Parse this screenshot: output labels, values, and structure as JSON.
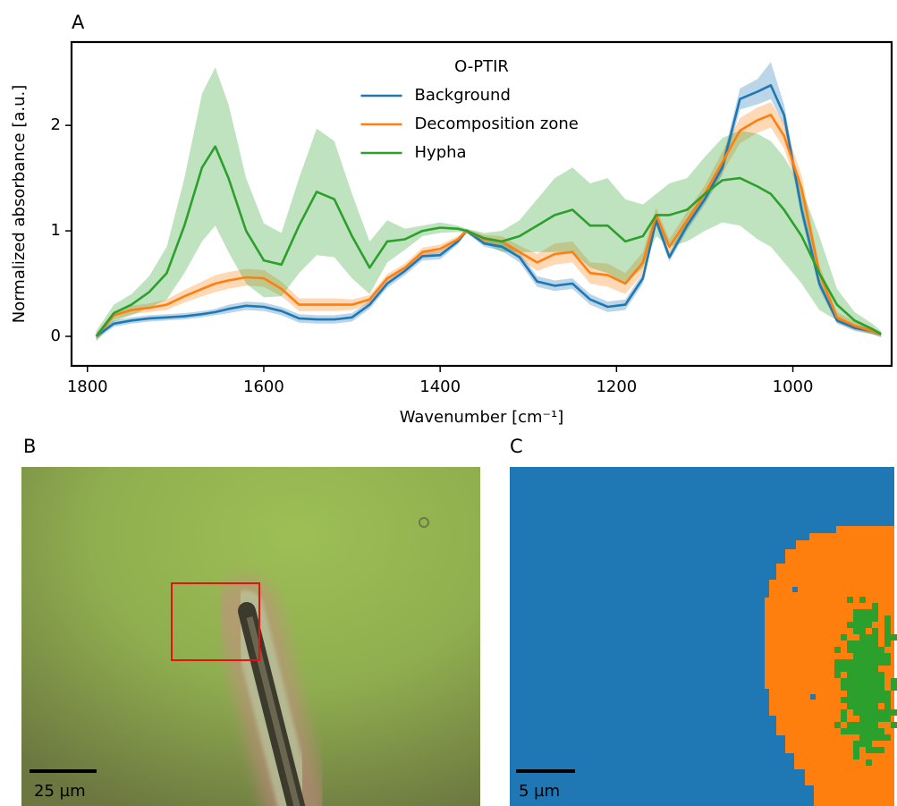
{
  "chart_data": {
    "type": "line",
    "panel_label": "A",
    "xlabel": "Wavenumber [cm⁻¹]",
    "ylabel": "Normalized absorbance [a.u.]",
    "legend_title": "O-PTIR",
    "legend_position": "upper center",
    "xlim": [
      1818,
      888
    ],
    "ylim": [
      -0.28,
      2.79
    ],
    "xticks": [
      1800,
      1600,
      1400,
      1200,
      1000
    ],
    "yticks": [
      0,
      1,
      2
    ],
    "x": [
      1790,
      1770,
      1750,
      1730,
      1710,
      1690,
      1670,
      1655,
      1640,
      1620,
      1600,
      1580,
      1560,
      1540,
      1520,
      1500,
      1480,
      1460,
      1440,
      1420,
      1400,
      1380,
      1370,
      1350,
      1330,
      1310,
      1290,
      1270,
      1250,
      1230,
      1210,
      1190,
      1170,
      1155,
      1140,
      1120,
      1100,
      1080,
      1060,
      1040,
      1025,
      1010,
      990,
      970,
      950,
      930,
      910,
      900
    ],
    "series": [
      {
        "name": "Background",
        "color": "#1f77b4",
        "values": [
          0,
          0.12,
          0.15,
          0.17,
          0.18,
          0.19,
          0.21,
          0.23,
          0.26,
          0.29,
          0.28,
          0.24,
          0.17,
          0.16,
          0.16,
          0.18,
          0.3,
          0.5,
          0.62,
          0.76,
          0.77,
          0.9,
          1,
          0.88,
          0.85,
          0.75,
          0.52,
          0.48,
          0.5,
          0.35,
          0.28,
          0.3,
          0.55,
          1.1,
          0.75,
          1.05,
          1.3,
          1.6,
          2.25,
          2.32,
          2.38,
          2.1,
          1.2,
          0.5,
          0.15,
          0.08,
          0.05,
          0.02
        ],
        "lower": [
          -0.03,
          0.09,
          0.12,
          0.14,
          0.15,
          0.16,
          0.18,
          0.2,
          0.22,
          0.25,
          0.24,
          0.2,
          0.13,
          0.12,
          0.12,
          0.14,
          0.26,
          0.46,
          0.58,
          0.72,
          0.73,
          0.87,
          0.98,
          0.85,
          0.81,
          0.7,
          0.47,
          0.43,
          0.45,
          0.3,
          0.23,
          0.25,
          0.5,
          1.05,
          0.71,
          1,
          1.25,
          1.53,
          2.15,
          2.2,
          2.25,
          2,
          1.12,
          0.45,
          0.12,
          0.05,
          0.02,
          0
        ],
        "upper": [
          0.03,
          0.15,
          0.18,
          0.2,
          0.21,
          0.22,
          0.24,
          0.26,
          0.3,
          0.33,
          0.32,
          0.28,
          0.21,
          0.2,
          0.2,
          0.22,
          0.34,
          0.54,
          0.66,
          0.8,
          0.81,
          0.93,
          1.02,
          0.91,
          0.89,
          0.8,
          0.57,
          0.53,
          0.55,
          0.4,
          0.33,
          0.35,
          0.6,
          1.15,
          0.79,
          1.1,
          1.35,
          1.67,
          2.35,
          2.44,
          2.6,
          2.2,
          1.28,
          0.55,
          0.18,
          0.11,
          0.08,
          0.04
        ]
      },
      {
        "name": "Decomposition zone",
        "color": "#ff7f0e",
        "values": [
          0,
          0.2,
          0.25,
          0.27,
          0.3,
          0.38,
          0.45,
          0.5,
          0.53,
          0.56,
          0.55,
          0.45,
          0.3,
          0.3,
          0.3,
          0.3,
          0.35,
          0.55,
          0.65,
          0.8,
          0.83,
          0.92,
          1,
          0.92,
          0.9,
          0.8,
          0.7,
          0.78,
          0.8,
          0.6,
          0.58,
          0.5,
          0.7,
          1.15,
          0.85,
          1.1,
          1.35,
          1.65,
          1.95,
          2.05,
          2.1,
          1.9,
          1.4,
          0.6,
          0.18,
          0.1,
          0.05,
          0.02
        ],
        "lower": [
          -0.03,
          0.16,
          0.21,
          0.23,
          0.25,
          0.32,
          0.38,
          0.42,
          0.45,
          0.48,
          0.47,
          0.38,
          0.24,
          0.24,
          0.24,
          0.25,
          0.31,
          0.51,
          0.61,
          0.76,
          0.79,
          0.89,
          0.98,
          0.88,
          0.85,
          0.74,
          0.62,
          0.68,
          0.7,
          0.5,
          0.47,
          0.4,
          0.6,
          1.08,
          0.78,
          1.02,
          1.27,
          1.55,
          1.83,
          1.93,
          1.98,
          1.78,
          1.28,
          0.52,
          0.13,
          0.06,
          0.02,
          0
        ],
        "upper": [
          0.03,
          0.24,
          0.29,
          0.31,
          0.35,
          0.44,
          0.52,
          0.58,
          0.61,
          0.64,
          0.63,
          0.52,
          0.36,
          0.36,
          0.36,
          0.35,
          0.39,
          0.59,
          0.69,
          0.84,
          0.87,
          0.95,
          1.02,
          0.96,
          0.95,
          0.86,
          0.78,
          0.88,
          0.9,
          0.7,
          0.69,
          0.6,
          0.8,
          1.22,
          0.92,
          1.18,
          1.43,
          1.75,
          2.07,
          2.17,
          2.22,
          2.02,
          1.52,
          0.68,
          0.23,
          0.14,
          0.08,
          0.04
        ]
      },
      {
        "name": "Hypha",
        "color": "#2ca02c",
        "values": [
          0,
          0.22,
          0.3,
          0.42,
          0.6,
          1.05,
          1.6,
          1.8,
          1.5,
          1,
          0.72,
          0.68,
          1.05,
          1.37,
          1.3,
          0.95,
          0.65,
          0.9,
          0.92,
          1,
          1.03,
          1.02,
          1,
          0.93,
          0.9,
          0.95,
          1.05,
          1.15,
          1.2,
          1.05,
          1.05,
          0.9,
          0.95,
          1.15,
          1.15,
          1.2,
          1.35,
          1.48,
          1.5,
          1.42,
          1.35,
          1.2,
          0.95,
          0.6,
          0.3,
          0.15,
          0.07,
          0.02
        ],
        "lower": [
          -0.05,
          0.14,
          0.2,
          0.27,
          0.35,
          0.6,
          0.9,
          1.05,
          0.8,
          0.5,
          0.37,
          0.38,
          0.6,
          0.77,
          0.75,
          0.55,
          0.4,
          0.7,
          0.82,
          0.95,
          0.98,
          0.99,
          0.98,
          0.88,
          0.8,
          0.8,
          0.8,
          0.8,
          0.8,
          0.65,
          0.6,
          0.5,
          0.65,
          0.95,
          0.85,
          0.9,
          1,
          1.08,
          1.05,
          0.92,
          0.85,
          0.7,
          0.5,
          0.25,
          0.15,
          0.07,
          0.02,
          -0.01
        ],
        "upper": [
          0.05,
          0.3,
          0.4,
          0.57,
          0.85,
          1.5,
          2.3,
          2.55,
          2.2,
          1.5,
          1.07,
          0.98,
          1.5,
          1.97,
          1.85,
          1.35,
          0.9,
          1.1,
          1.02,
          1.05,
          1.08,
          1.05,
          1.02,
          0.98,
          1,
          1.1,
          1.3,
          1.5,
          1.6,
          1.45,
          1.5,
          1.3,
          1.25,
          1.35,
          1.45,
          1.5,
          1.7,
          1.88,
          1.95,
          1.92,
          1.85,
          1.7,
          1.4,
          0.95,
          0.45,
          0.23,
          0.12,
          0.05
        ]
      }
    ]
  },
  "image_b": {
    "panel_label": "B",
    "scale_bar": "25 µm"
  },
  "image_c": {
    "panel_label": "C",
    "scale_bar": "5 µm"
  }
}
